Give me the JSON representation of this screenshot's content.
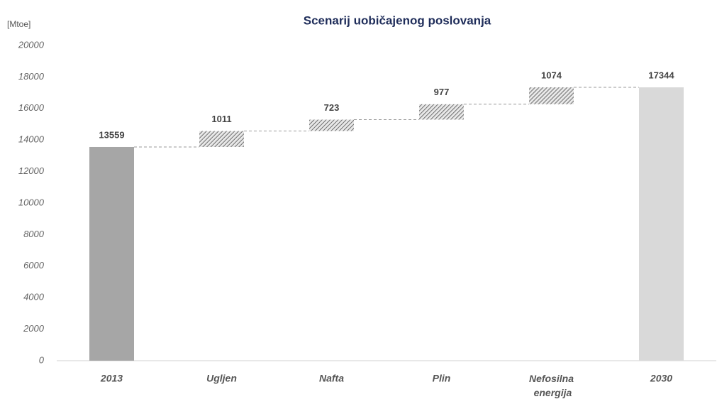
{
  "chart_data": {
    "type": "waterfall",
    "title": "Scenarij uobičajenog poslovanja",
    "y_label": "[Mtoe]",
    "categories": [
      "2013",
      "Ugljen",
      "Nafta",
      "Plin",
      "Nefosilna energija",
      "2030"
    ],
    "values": [
      13559,
      1011,
      723,
      977,
      1074,
      17344
    ],
    "totals": [
      0,
      5
    ],
    "total_colors": [
      "#a6a6a6",
      "#d9d9d9"
    ],
    "increment_color": "#6e6e6e",
    "ylim": [
      0,
      20000
    ],
    "yticks": [
      0,
      2000,
      4000,
      6000,
      8000,
      10000,
      12000,
      14000,
      16000,
      18000,
      20000
    ],
    "grid": false
  }
}
